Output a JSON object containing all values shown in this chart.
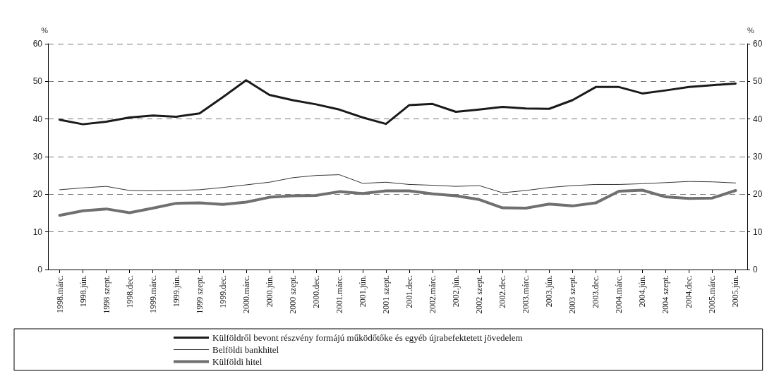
{
  "chart_data": {
    "type": "line",
    "categories": [
      "1998.márc.",
      "1998.jún.",
      "1998 szept.",
      "1998.dec.",
      "1999.márc.",
      "1999.jún.",
      "1999 szept.",
      "1999.dec.",
      "2000.márc.",
      "2000.jún.",
      "2000 szept.",
      "2000.dec.",
      "2001.márc.",
      "2001.jún.",
      "2001 szept.",
      "2001.dec.",
      "2002.márc.",
      "2002.jún.",
      "2002 szept.",
      "2002.dec.",
      "2003.márc.",
      "2003.jún.",
      "2003 szept.",
      "2003.dec.",
      "2004.márc.",
      "2004.jún.",
      "2004 szept.",
      "2004.dec.",
      "2005.márc.",
      "2005.jún."
    ],
    "series": [
      {
        "name": "Külföldről bevont részvény formájú működőtőke és egyéb újrabefektetett jövedelem",
        "color": "#1a1a1a",
        "values": [
          39.8,
          38.6,
          39.3,
          40.4,
          40.9,
          40.6,
          41.5,
          45.8,
          50.3,
          46.4,
          45.0,
          43.9,
          42.5,
          40.4,
          38.7,
          43.7,
          44.0,
          41.9,
          42.5,
          43.2,
          42.8,
          42.7,
          45.0,
          48.5,
          48.5,
          46.8,
          47.6,
          48.5,
          49.0,
          49.4
        ]
      },
      {
        "name": "Belföldi bankhitel",
        "color": "#333333",
        "values": [
          21.2,
          21.7,
          22.1,
          21.0,
          20.9,
          21.0,
          21.2,
          21.8,
          22.5,
          23.2,
          24.4,
          25.0,
          25.2,
          22.9,
          23.2,
          22.6,
          22.4,
          22.1,
          22.3,
          20.4,
          21.0,
          21.8,
          22.3,
          22.6,
          22.6,
          22.8,
          23.1,
          23.4,
          23.3,
          23.0
        ]
      },
      {
        "name": "Külföldi hitel",
        "color": "#707070",
        "values": [
          14.4,
          15.6,
          16.1,
          15.1,
          16.3,
          17.6,
          17.7,
          17.3,
          17.9,
          19.2,
          19.6,
          19.7,
          20.7,
          20.2,
          20.9,
          20.9,
          20.1,
          19.6,
          18.6,
          16.4,
          16.3,
          17.4,
          16.9,
          17.7,
          20.8,
          21.1,
          19.3,
          18.9,
          19.0,
          21.0
        ]
      }
    ],
    "ylabel": "%",
    "y2label": "%",
    "ylim": [
      0,
      60
    ],
    "yticks": [
      0,
      10,
      20,
      30,
      40,
      50,
      60
    ],
    "y2lim": [
      0,
      60
    ],
    "y2ticks": [
      0,
      10,
      20,
      30,
      40,
      50,
      60
    ],
    "grid": "y",
    "legend": "bottom",
    "marker": "none",
    "line_style": "solid"
  }
}
